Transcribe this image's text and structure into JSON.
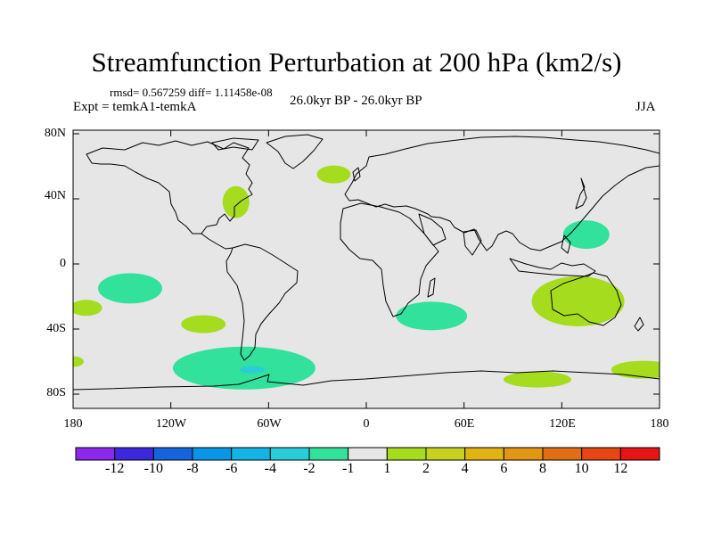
{
  "title": "Streamfunction Perturbation at 200 hPa (km2/s)",
  "stats": "rmsd= 0.567259 diff= 1.11458e-08",
  "experiment": "Expt = temkA1-temkA",
  "period": "26.0kyr BP - 26.0kyr BP",
  "season": "JJA",
  "colors": {
    "land_ocean_background": "#e6e6e6",
    "positive_1_2": "#a5dc1e",
    "negative_2_1": "#32e19b",
    "negative_4_2": "#28cdd7"
  },
  "map": {
    "projection": "cylindrical-equidistant",
    "lat_ticks": [
      "80N",
      "40N",
      "0",
      "40S",
      "80S"
    ],
    "lon_ticks": [
      "180",
      "120W",
      "60W",
      "0",
      "60E",
      "120E",
      "180"
    ]
  },
  "anomaly_regions": [
    {
      "name": "eastern-north-america",
      "sign": "positive",
      "lon": -80,
      "lat": 38
    },
    {
      "name": "north-atlantic",
      "sign": "positive",
      "lon": -20,
      "lat": 55
    },
    {
      "name": "western-pacific-philippines",
      "sign": "negative",
      "lon": 135,
      "lat": 18
    },
    {
      "name": "south-pacific-tropical",
      "sign": "negative",
      "lon": -145,
      "lat": -15
    },
    {
      "name": "far-southeast-pacific",
      "sign": "positive",
      "lon": -172,
      "lat": -27
    },
    {
      "name": "southeast-pacific",
      "sign": "positive",
      "lon": -100,
      "lat": -37
    },
    {
      "name": "southern-africa-indian-ocean",
      "sign": "negative",
      "lon": 40,
      "lat": -32
    },
    {
      "name": "australia",
      "sign": "positive",
      "lon": 130,
      "lat": -23
    },
    {
      "name": "drake-passage-south-atlantic",
      "sign": "negative",
      "lon": -75,
      "lat": -64
    },
    {
      "name": "drake-passage-core",
      "sign": "negative",
      "lon": -70,
      "lat": -65
    },
    {
      "name": "southern-indian-ocean",
      "sign": "positive",
      "lon": 105,
      "lat": -71
    },
    {
      "name": "southwest-pacific-south",
      "sign": "positive",
      "lon": 170,
      "lat": -65
    },
    {
      "name": "dateline-south",
      "sign": "positive",
      "lon": -180,
      "lat": -60
    }
  ],
  "colorbar": {
    "labels": [
      "-12",
      "-10",
      "-8",
      "-6",
      "-4",
      "-2",
      "-1",
      "1",
      "2",
      "4",
      "6",
      "8",
      "10",
      "12"
    ],
    "boxes": [
      "#8c28ee",
      "#3c28dc",
      "#1464dc",
      "#0a96e6",
      "#14b4e6",
      "#28cdd7",
      "#32e19b",
      "#e6e6e6",
      "#a5dc1e",
      "#c8d21e",
      "#e1b414",
      "#e19614",
      "#e16e14",
      "#e64614",
      "#e61414"
    ]
  }
}
